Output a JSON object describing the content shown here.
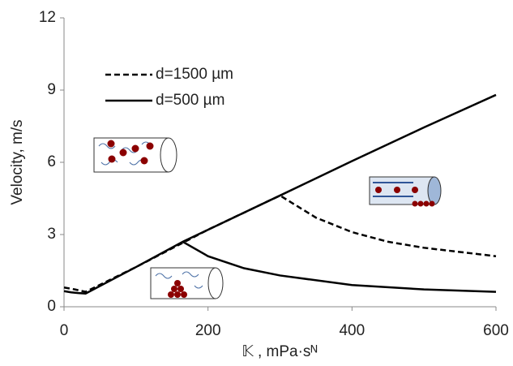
{
  "chart_data": {
    "type": "line",
    "ylabel": "Velocity, m/s",
    "xlabel": "𝕂 , mPa·sᴺ",
    "xlim": [
      0,
      600
    ],
    "xticks": [
      0,
      200,
      400,
      600
    ],
    "ylim": [
      0,
      12
    ],
    "yticks": [
      0,
      3,
      6,
      9,
      12
    ],
    "grid": false,
    "legend": "upper left",
    "series": [
      {
        "name": "d=1500 µm",
        "color": "#000000",
        "dash": true,
        "x": [
          0,
          15,
          30,
          100,
          200,
          300,
          350,
          400,
          450,
          500,
          600
        ],
        "values": [
          0.8,
          0.72,
          0.62,
          1.65,
          3.2,
          4.62,
          3.7,
          3.1,
          2.7,
          2.45,
          2.1
        ]
      },
      {
        "name": "d=500 µm",
        "color": "#000000",
        "dash": false,
        "x": [
          0,
          10,
          20,
          30,
          100,
          165,
          200,
          300,
          400,
          500,
          600,
          null,
          165,
          200,
          250,
          300,
          400,
          500,
          600
        ],
        "values": [
          0.65,
          0.6,
          0.57,
          0.55,
          1.65,
          2.7,
          3.2,
          4.62,
          6.05,
          7.45,
          8.8,
          null,
          2.7,
          2.1,
          1.6,
          1.3,
          0.9,
          0.72,
          0.62
        ]
      }
    ]
  }
}
